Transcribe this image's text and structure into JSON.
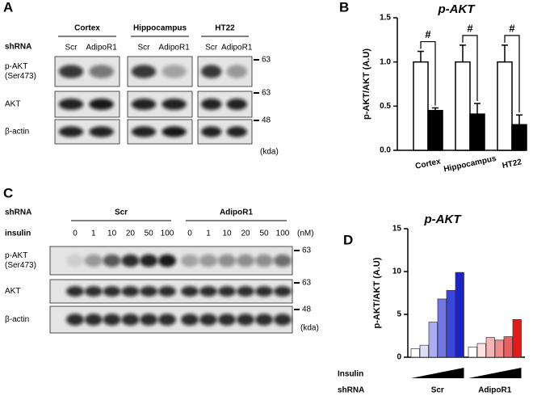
{
  "panels": {
    "A": {
      "letter": "A",
      "shrna_label": "shRNA",
      "groups": [
        {
          "title": "Cortex",
          "lanes": [
            "Scr",
            "AdipoR1"
          ]
        },
        {
          "title": "Hippocampus",
          "lanes": [
            "Scr",
            "AdipoR1"
          ]
        },
        {
          "title": "HT22",
          "lanes": [
            "Scr",
            "AdipoR1"
          ]
        }
      ],
      "rows": [
        [
          "p-AKT",
          "(Ser473)"
        ],
        [
          "AKT"
        ],
        [
          "β-actin"
        ]
      ],
      "markers": [
        63,
        63,
        48
      ],
      "unit": "(kda)"
    },
    "B": {
      "letter": "B"
    },
    "C": {
      "letter": "C",
      "shrna_label": "shRNA",
      "insulin_label": "insulin",
      "groups": [
        {
          "title": "Scr",
          "doses": [
            0,
            1,
            10,
            20,
            50,
            100
          ]
        },
        {
          "title": "AdipoR1",
          "doses": [
            0,
            1,
            10,
            20,
            50,
            100
          ]
        }
      ],
      "dose_unit": "(nM)",
      "rows": [
        [
          "p-AKT",
          "(Ser473)"
        ],
        [
          "AKT"
        ],
        [
          "β-actin"
        ]
      ],
      "markers": [
        63,
        63,
        48
      ],
      "unit": "(kda)"
    },
    "D": {
      "letter": "D"
    }
  },
  "chart_data": [
    {
      "type": "grouped_bar",
      "title": "p-AKT",
      "y_label": "p-AKT/AKT (A.U)",
      "categories": [
        "Cortex",
        "Hippocampus",
        "HT22"
      ],
      "series": [
        {
          "color": "#ffffff",
          "values": [
            1.0,
            1.0,
            1.0
          ],
          "errors": [
            0.12,
            0.19,
            0.19
          ]
        },
        {
          "color": "#000000",
          "values": [
            0.45,
            0.41,
            0.29
          ],
          "errors": [
            0.03,
            0.12,
            0.11
          ]
        }
      ],
      "ylim": [
        0,
        1.5
      ],
      "yticks": [
        {
          "value": 0,
          "label": "0.0"
        },
        {
          "value": 0.5,
          "label": "0.5"
        },
        {
          "value": 1,
          "label": "1.0"
        },
        {
          "value": 1.5,
          "label": "1.5"
        }
      ],
      "annotations": [
        "#",
        "#",
        "#"
      ]
    },
    {
      "type": "bar",
      "title": "p-AKT",
      "y_label": "p-AKT/AKT (A.U)",
      "categories": [
        null,
        null,
        null,
        null,
        null,
        null,
        null,
        null,
        null,
        null,
        null,
        null
      ],
      "values": [
        1.0,
        1.4,
        4.1,
        6.8,
        7.8,
        9.9,
        1.2,
        1.6,
        2.3,
        2.0,
        2.4,
        4.4
      ],
      "colors": [
        "#ffffff",
        "#dde0f8",
        "#a9aef0",
        "#7077e6",
        "#3c46dc",
        "#1a22c8",
        "#ffffff",
        "#fde2e2",
        "#f7b5b5",
        "#f08d8d",
        "#ea5f5f",
        "#e31a1a"
      ],
      "ylim": [
        0,
        15
      ],
      "yticks": [
        0,
        5,
        10,
        15
      ],
      "row_labels": [
        "Insulin",
        "shRNA"
      ],
      "groups": [
        "Scr",
        "AdipoR1"
      ]
    }
  ]
}
